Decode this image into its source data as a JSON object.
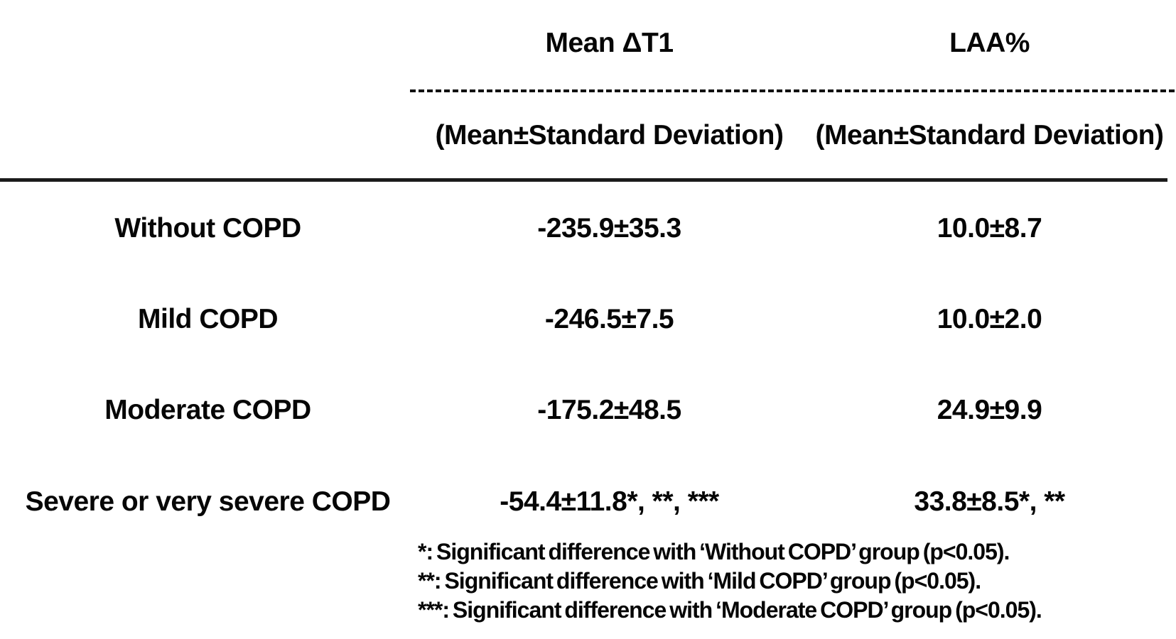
{
  "table": {
    "row_header_label": "",
    "columns": [
      {
        "header": "Mean ΔT1",
        "subheader": "(Mean±Standard Deviation)"
      },
      {
        "header": "LAA%",
        "subheader": "(Mean±Standard Deviation)"
      }
    ],
    "rows": [
      {
        "label": "Without COPD",
        "mean_dt1": "-235.9±35.3",
        "laa": "10.0±8.7"
      },
      {
        "label": "Mild COPD",
        "mean_dt1": "-246.5±7.5",
        "laa": "10.0±2.0"
      },
      {
        "label": "Moderate COPD",
        "mean_dt1": "-175.2±48.5",
        "laa": "24.9±9.9"
      },
      {
        "label": "Severe or very severe COPD",
        "mean_dt1": "-54.4±11.8*, **, ***",
        "laa": "33.8±8.5*, **"
      }
    ],
    "footnotes": [
      "*: Significant difference with ‘Without COPD’ group (p<0.05).",
      "**: Significant difference with ‘Mild COPD’ group (p<0.05).",
      "***: Significant difference with ‘Moderate COPD’ group (p<0.05)."
    ]
  },
  "colors": {
    "text": "#060606",
    "background": "#ffffff",
    "rule": "#1b1b1b"
  }
}
